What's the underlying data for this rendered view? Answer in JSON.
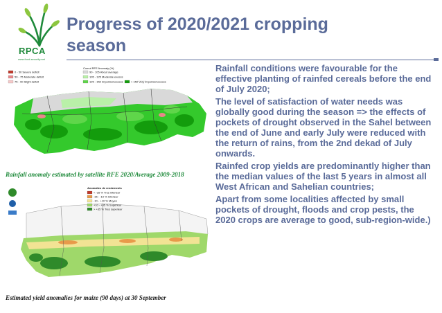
{
  "header": {
    "title_line1": "Progress of 2020/2021 cropping",
    "title_line2": "season",
    "logo_text": "RPCA",
    "logo_subtext": "www.food-security.net"
  },
  "figures": {
    "rainfall_map": {
      "caption": "Rainfall anomaly estimated by satellite RFE 2020/Average 2009-2018",
      "legend_title": "Cumul RFE Anomaly (%)",
      "legend_items": [
        {
          "label": "0 - 50 Severe deficit",
          "color": "#c0392b"
        },
        {
          "label": "50 - 75 Moderate deficit",
          "color": "#e8888a"
        },
        {
          "label": "75 - 90 Slight deficit",
          "color": "#f6c9c9"
        },
        {
          "label": "90 - 105 About average",
          "color": "#d9d9d9"
        },
        {
          "label": "105 - 125 Moderate excess",
          "color": "#b9f0a8"
        },
        {
          "label": "125 - 150 Important excess",
          "color": "#5fd64a"
        },
        {
          "label": "> 150 Very important excess",
          "color": "#139c0c"
        }
      ],
      "place_label": "Sahara"
    },
    "yield_map": {
      "caption": "Estimated yield anomalies for maize (90 days) at 30 September",
      "legend_title": "Anomalies de rendements",
      "legend_items": [
        {
          "label": "< -35 % Tres inferieur",
          "color": "#c0392b"
        },
        {
          "label": "-35 - -10 % Inferieur",
          "color": "#e89a4a"
        },
        {
          "label": "-10 - +10 % Moyen",
          "color": "#f2e394"
        },
        {
          "label": "+10 - +35 % Superieur",
          "color": "#9fd86a"
        },
        {
          "label": "> +35 % Tres superieur",
          "color": "#2f8a2a"
        }
      ]
    }
  },
  "bullets": [
    "Rainfall conditions were favourable for the effective planting of rainfed cereals before the end of July 2020;",
    "The level of satisfaction of water needs was globally good during the season => the effects of pockets of drought observed in the Sahel between the end of June and early July were reduced with the return of rains, from the 2nd dekad of July onwards.",
    "Rainfed crop yields are predominantly higher than the median values of the last 5 years in almost all West African and Sahelian countries;",
    "Apart from some localities affected by small pockets of drought, floods and crop pests, the 2020 crops are average to good, sub-region-wide.)"
  ],
  "colors": {
    "title": "#5a6b99",
    "logo_green": "#1f8a3b"
  }
}
